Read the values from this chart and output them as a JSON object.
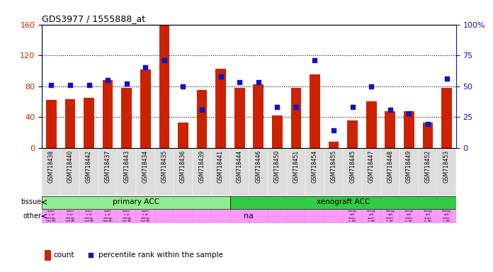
{
  "title": "GDS3977 / 1555888_at",
  "samples": [
    "GSM718438",
    "GSM718440",
    "GSM718442",
    "GSM718437",
    "GSM718443",
    "GSM718434",
    "GSM718435",
    "GSM718436",
    "GSM718439",
    "GSM718441",
    "GSM718444",
    "GSM718446",
    "GSM718450",
    "GSM718451",
    "GSM718454",
    "GSM718455",
    "GSM718445",
    "GSM718447",
    "GSM718448",
    "GSM718449",
    "GSM718452",
    "GSM718453"
  ],
  "counts": [
    62,
    63,
    65,
    88,
    78,
    102,
    160,
    33,
    75,
    103,
    78,
    82,
    42,
    78,
    95,
    8,
    35,
    60,
    47,
    47,
    33,
    78
  ],
  "percentiles": [
    51,
    51,
    51,
    55,
    52,
    65,
    71,
    50,
    31,
    58,
    53,
    53,
    33,
    33,
    71,
    14,
    33,
    50,
    31,
    28,
    19,
    56
  ],
  "tissue_boundary": 10,
  "primary_color": "#90EE90",
  "xeno_color": "#33CC44",
  "other_color": "#FF99FF",
  "bar_color": "#CC2200",
  "dot_color": "#1111CC",
  "ylim_left": [
    0,
    160
  ],
  "ylim_right": [
    0,
    100
  ],
  "yticks_left": [
    0,
    40,
    80,
    120,
    160
  ],
  "ytick_labels_left": [
    "0",
    "40",
    "80",
    "120",
    "160"
  ],
  "yticks_right": [
    0,
    25,
    50,
    75,
    100
  ],
  "ytick_labels_right": [
    "0",
    "25",
    "50",
    "75",
    "100%"
  ],
  "background_color": "#FFFFFF",
  "xticklabel_bg": "#DDDDDD"
}
